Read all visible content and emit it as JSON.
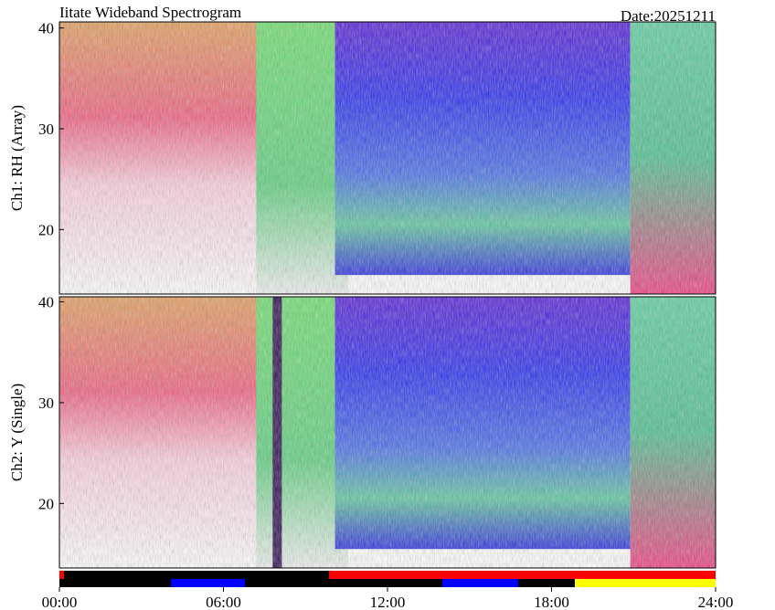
{
  "chart_data": [
    {
      "type": "spectrogram",
      "title": "Iitate Wideband Spectrogram",
      "subtitle": "Date:20251211",
      "ylabel": "Ch1: RH (Array)",
      "ylim": [
        13.6,
        40.6
      ],
      "yticks": [
        20,
        30,
        40
      ]
    },
    {
      "type": "spectrogram",
      "ylabel": "Ch2: Y (Single)",
      "ylim": [
        13.6,
        40.5
      ],
      "yticks": [
        20,
        30,
        40
      ],
      "xlim": [
        0,
        24
      ],
      "xticks": [
        {
          "value": 0,
          "label": "00:00"
        },
        {
          "value": 6,
          "label": "06:00"
        },
        {
          "value": 12,
          "label": "12:00"
        },
        {
          "value": 18,
          "label": "18:00"
        },
        {
          "value": 24,
          "label": "24:00"
        }
      ]
    }
  ]
}
